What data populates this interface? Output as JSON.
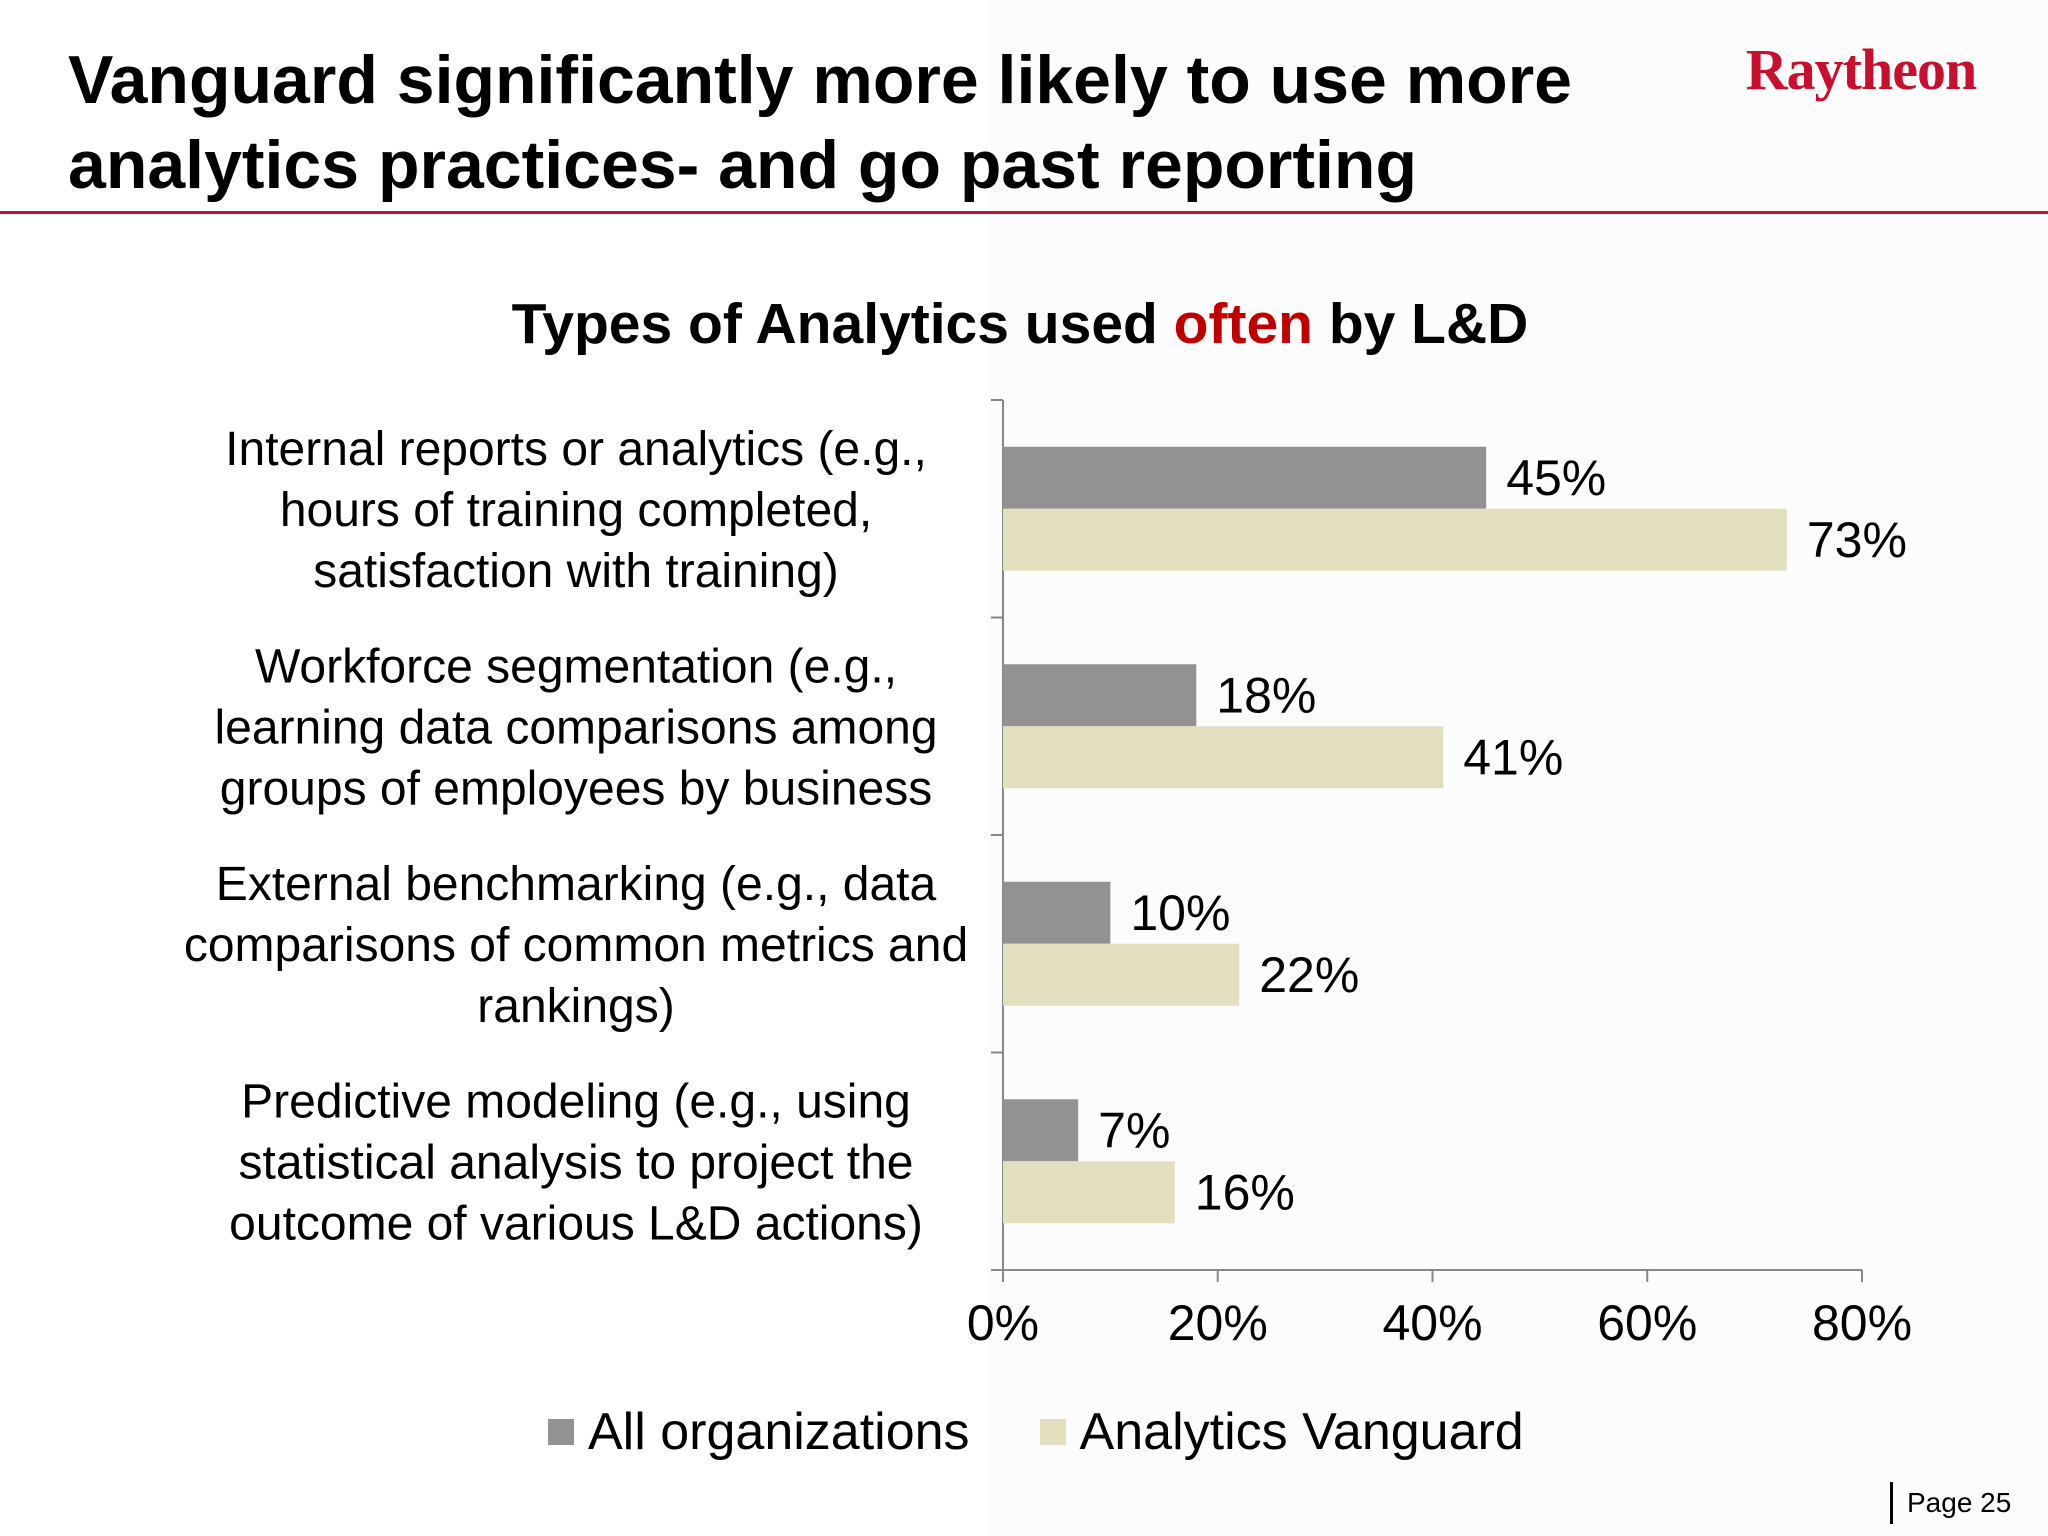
{
  "slide": {
    "title": "Vanguard significantly more likely to use more analytics practices- and go past reporting",
    "logo_text": "Raytheon",
    "page_label": "Page 25"
  },
  "colors": {
    "accent_red": "#c8102e",
    "emphasis_red": "#c00000",
    "series_all": "#939191",
    "series_vanguard": "#e2dfbf"
  },
  "chart_data": {
    "type": "bar",
    "orientation": "horizontal",
    "title_parts": [
      "Types of Analytics used ",
      "often",
      " by L&D"
    ],
    "categories": [
      [
        "Internal reports or analytics (e.g.,",
        "hours of training completed,",
        "satisfaction with training)"
      ],
      [
        "Workforce segmentation (e.g.,",
        "learning data comparisons among",
        "groups of employees by business"
      ],
      [
        "External benchmarking (e.g., data",
        "comparisons of common metrics and",
        "rankings)"
      ],
      [
        "Predictive modeling (e.g., using",
        "statistical analysis to project the",
        "outcome of various L&D actions)"
      ]
    ],
    "series": [
      {
        "name": "All organizations",
        "values": [
          45,
          18,
          10,
          7
        ],
        "labels": [
          "45%",
          "18%",
          "10%",
          "7%"
        ]
      },
      {
        "name": "Analytics Vanguard",
        "values": [
          73,
          41,
          22,
          16
        ],
        "labels": [
          "73%",
          "41%",
          "22%",
          "16%"
        ]
      }
    ],
    "xlim": [
      0,
      80
    ],
    "xticks": [
      0,
      20,
      40,
      60,
      80
    ],
    "xtick_labels": [
      "0%",
      "20%",
      "40%",
      "60%",
      "80%"
    ],
    "grid": false,
    "legend_position": "bottom"
  }
}
